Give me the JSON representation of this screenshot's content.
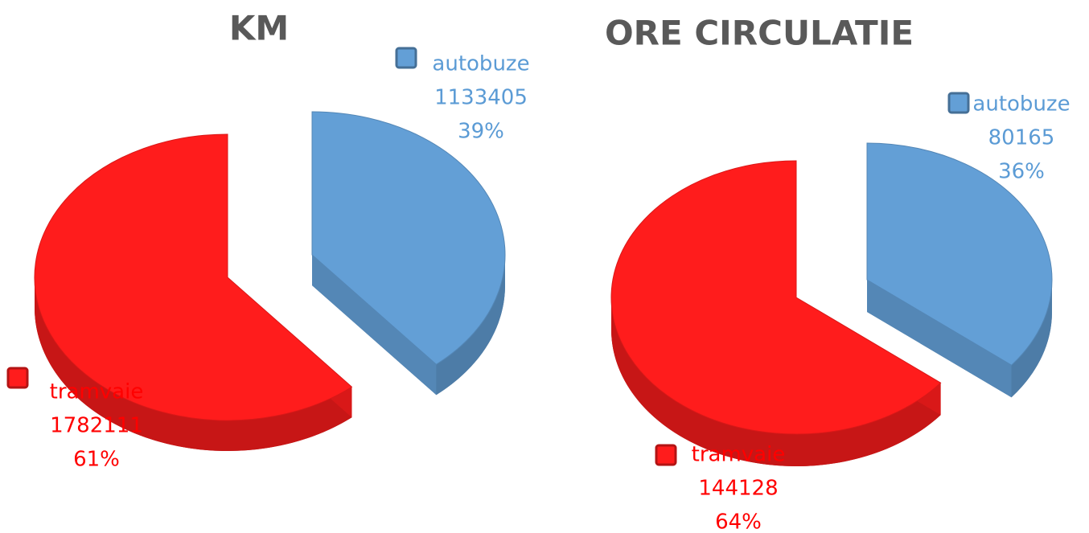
{
  "chart_data": [
    {
      "type": "pie",
      "title": "KM",
      "categories": [
        "autobuze",
        "tramvaie"
      ],
      "values": [
        1133405,
        1782111
      ],
      "percent_labels": [
        "39%",
        "61%"
      ],
      "colors": [
        "#639fd6",
        "#ff1c1c"
      ]
    },
    {
      "type": "pie",
      "title": "ORE CIRCULATIE",
      "categories": [
        "autobuze",
        "tramvaie"
      ],
      "values": [
        80165,
        144128
      ],
      "percent_labels": [
        "36%",
        "64%"
      ],
      "colors": [
        "#639fd6",
        "#ff1c1c"
      ]
    }
  ]
}
